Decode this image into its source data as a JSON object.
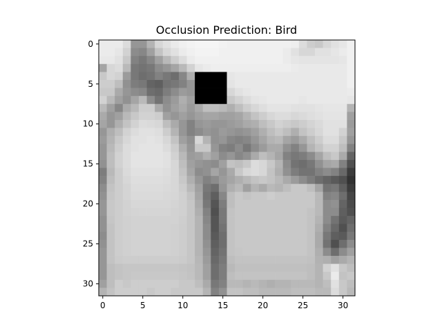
{
  "chart_data": {
    "type": "heatmap",
    "title": "Occlusion Prediction: Bird",
    "colormap": "gray",
    "rows": 32,
    "cols": 32,
    "x_ticks": [
      0,
      5,
      10,
      15,
      20,
      25,
      30
    ],
    "y_ticks": [
      0,
      5,
      10,
      15,
      20,
      25,
      30
    ],
    "occlusion_patch": {
      "row_start": 4,
      "row_end": 7,
      "col_start": 12,
      "col_end": 15,
      "value": 0
    },
    "values": [
      [
        235,
        235,
        235,
        220,
        150,
        150,
        180,
        215,
        225,
        235,
        240,
        243,
        245,
        245,
        245,
        242,
        240,
        240,
        240,
        240,
        240,
        240,
        240,
        240,
        238,
        220,
        205,
        200,
        215,
        225,
        230,
        240
      ],
      [
        235,
        235,
        230,
        210,
        140,
        135,
        160,
        195,
        215,
        225,
        235,
        240,
        243,
        243,
        243,
        240,
        240,
        240,
        240,
        240,
        240,
        240,
        240,
        235,
        225,
        215,
        215,
        225,
        225,
        230,
        235,
        240
      ],
      [
        232,
        232,
        225,
        200,
        130,
        120,
        135,
        160,
        185,
        205,
        220,
        235,
        240,
        240,
        240,
        240,
        240,
        240,
        240,
        240,
        240,
        240,
        240,
        235,
        230,
        228,
        228,
        228,
        228,
        228,
        230,
        240
      ],
      [
        165,
        215,
        220,
        185,
        120,
        115,
        120,
        140,
        150,
        165,
        185,
        210,
        230,
        235,
        238,
        238,
        238,
        238,
        238,
        238,
        238,
        238,
        238,
        238,
        235,
        233,
        233,
        233,
        233,
        233,
        233,
        240
      ],
      [
        200,
        215,
        210,
        155,
        120,
        110,
        115,
        130,
        120,
        110,
        135,
        175,
        0,
        0,
        0,
        0,
        230,
        233,
        233,
        233,
        233,
        233,
        233,
        233,
        233,
        233,
        233,
        233,
        233,
        233,
        233,
        240
      ],
      [
        205,
        205,
        190,
        145,
        125,
        120,
        100,
        95,
        115,
        120,
        130,
        150,
        0,
        0,
        0,
        0,
        228,
        233,
        233,
        233,
        233,
        233,
        233,
        233,
        233,
        233,
        233,
        233,
        233,
        233,
        233,
        240
      ],
      [
        200,
        200,
        170,
        150,
        140,
        135,
        110,
        105,
        125,
        140,
        155,
        150,
        0,
        0,
        0,
        0,
        215,
        225,
        230,
        233,
        233,
        233,
        233,
        233,
        233,
        233,
        233,
        233,
        233,
        233,
        233,
        235
      ],
      [
        210,
        185,
        160,
        145,
        165,
        185,
        140,
        115,
        140,
        155,
        175,
        160,
        0,
        0,
        0,
        0,
        200,
        210,
        220,
        228,
        230,
        233,
        233,
        233,
        233,
        230,
        233,
        233,
        233,
        233,
        233,
        230
      ],
      [
        185,
        160,
        135,
        170,
        185,
        205,
        205,
        170,
        145,
        160,
        170,
        155,
        170,
        190,
        190,
        185,
        175,
        190,
        205,
        215,
        222,
        228,
        228,
        228,
        225,
        225,
        225,
        228,
        230,
        230,
        230,
        180
      ],
      [
        170,
        150,
        160,
        185,
        200,
        210,
        210,
        205,
        160,
        150,
        160,
        150,
        160,
        165,
        165,
        160,
        160,
        165,
        180,
        195,
        205,
        215,
        220,
        220,
        215,
        218,
        222,
        225,
        228,
        228,
        228,
        160
      ],
      [
        165,
        150,
        175,
        195,
        210,
        220,
        218,
        215,
        190,
        170,
        150,
        130,
        150,
        155,
        150,
        150,
        155,
        160,
        170,
        175,
        190,
        200,
        210,
        205,
        200,
        205,
        212,
        218,
        225,
        225,
        225,
        155
      ],
      [
        150,
        175,
        190,
        210,
        220,
        225,
        225,
        222,
        205,
        180,
        150,
        130,
        140,
        150,
        145,
        155,
        150,
        145,
        150,
        160,
        175,
        190,
        200,
        190,
        175,
        195,
        205,
        215,
        225,
        225,
        210,
        160
      ],
      [
        155,
        180,
        200,
        215,
        225,
        225,
        228,
        225,
        215,
        195,
        160,
        145,
        215,
        180,
        145,
        150,
        135,
        130,
        135,
        150,
        165,
        180,
        185,
        165,
        155,
        170,
        190,
        205,
        220,
        220,
        200,
        150
      ],
      [
        150,
        185,
        205,
        220,
        225,
        228,
        228,
        228,
        220,
        205,
        175,
        150,
        200,
        200,
        150,
        130,
        125,
        140,
        120,
        140,
        155,
        170,
        170,
        145,
        130,
        150,
        180,
        195,
        210,
        210,
        190,
        130
      ],
      [
        150,
        190,
        210,
        220,
        228,
        228,
        228,
        228,
        225,
        210,
        185,
        155,
        160,
        175,
        160,
        140,
        150,
        135,
        145,
        170,
        190,
        180,
        165,
        130,
        120,
        125,
        140,
        165,
        190,
        200,
        170,
        100
      ],
      [
        145,
        190,
        210,
        220,
        228,
        228,
        228,
        228,
        225,
        215,
        190,
        160,
        150,
        145,
        140,
        160,
        195,
        190,
        200,
        220,
        215,
        200,
        180,
        140,
        115,
        110,
        120,
        145,
        165,
        170,
        130,
        80
      ],
      [
        125,
        185,
        205,
        218,
        225,
        225,
        225,
        225,
        222,
        215,
        195,
        165,
        140,
        145,
        165,
        150,
        170,
        200,
        215,
        220,
        215,
        195,
        175,
        145,
        125,
        115,
        115,
        130,
        140,
        130,
        105,
        60
      ],
      [
        130,
        190,
        205,
        215,
        222,
        222,
        222,
        222,
        220,
        215,
        200,
        175,
        150,
        130,
        140,
        155,
        165,
        175,
        185,
        195,
        200,
        195,
        185,
        170,
        155,
        140,
        125,
        110,
        100,
        90,
        80,
        50
      ],
      [
        140,
        195,
        205,
        212,
        220,
        220,
        220,
        220,
        218,
        215,
        205,
        185,
        160,
        120,
        110,
        150,
        175,
        185,
        160,
        180,
        170,
        185,
        180,
        190,
        200,
        200,
        190,
        165,
        115,
        120,
        95,
        60
      ],
      [
        145,
        198,
        205,
        212,
        218,
        218,
        218,
        218,
        216,
        214,
        208,
        195,
        165,
        115,
        95,
        135,
        190,
        200,
        195,
        200,
        200,
        205,
        200,
        200,
        200,
        200,
        200,
        185,
        130,
        135,
        110,
        70
      ],
      [
        150,
        200,
        205,
        210,
        215,
        215,
        215,
        215,
        215,
        212,
        208,
        198,
        170,
        120,
        85,
        125,
        190,
        200,
        200,
        200,
        200,
        200,
        200,
        200,
        200,
        200,
        200,
        185,
        140,
        145,
        100,
        75
      ],
      [
        150,
        200,
        205,
        210,
        212,
        213,
        213,
        213,
        213,
        210,
        208,
        198,
        175,
        130,
        80,
        120,
        195,
        200,
        200,
        200,
        200,
        200,
        200,
        200,
        200,
        200,
        195,
        185,
        140,
        140,
        95,
        80
      ],
      [
        145,
        198,
        205,
        208,
        210,
        210,
        210,
        210,
        210,
        210,
        206,
        198,
        180,
        135,
        85,
        120,
        195,
        200,
        200,
        200,
        200,
        200,
        200,
        200,
        200,
        200,
        195,
        180,
        140,
        115,
        90,
        100
      ],
      [
        145,
        195,
        205,
        208,
        210,
        210,
        210,
        210,
        210,
        208,
        205,
        198,
        180,
        140,
        85,
        115,
        195,
        200,
        200,
        200,
        200,
        200,
        200,
        200,
        200,
        200,
        195,
        175,
        130,
        105,
        80,
        110
      ],
      [
        140,
        195,
        205,
        208,
        210,
        210,
        210,
        210,
        210,
        208,
        205,
        198,
        180,
        140,
        90,
        110,
        195,
        200,
        200,
        200,
        200,
        200,
        200,
        200,
        200,
        200,
        195,
        170,
        120,
        95,
        90,
        120
      ],
      [
        145,
        195,
        205,
        208,
        210,
        210,
        210,
        210,
        210,
        208,
        205,
        198,
        180,
        145,
        95,
        110,
        195,
        200,
        200,
        200,
        200,
        200,
        200,
        200,
        200,
        200,
        195,
        170,
        115,
        80,
        110,
        140
      ],
      [
        150,
        195,
        205,
        208,
        210,
        210,
        210,
        210,
        210,
        208,
        205,
        198,
        180,
        150,
        100,
        115,
        195,
        198,
        200,
        200,
        200,
        200,
        200,
        200,
        200,
        200,
        195,
        175,
        140,
        110,
        140,
        160
      ],
      [
        150,
        195,
        203,
        205,
        205,
        205,
        205,
        205,
        205,
        205,
        203,
        198,
        183,
        155,
        105,
        120,
        190,
        195,
        195,
        195,
        195,
        195,
        195,
        195,
        195,
        195,
        193,
        178,
        175,
        160,
        170,
        180
      ],
      [
        150,
        190,
        195,
        198,
        198,
        198,
        198,
        198,
        198,
        198,
        196,
        194,
        185,
        160,
        110,
        125,
        185,
        192,
        192,
        192,
        192,
        192,
        192,
        192,
        192,
        192,
        190,
        180,
        210,
        225,
        200,
        190
      ],
      [
        150,
        190,
        195,
        198,
        200,
        200,
        200,
        200,
        200,
        200,
        198,
        195,
        185,
        160,
        110,
        125,
        190,
        195,
        195,
        195,
        195,
        195,
        195,
        195,
        195,
        195,
        190,
        180,
        200,
        235,
        195,
        200
      ],
      [
        160,
        190,
        205,
        200,
        205,
        205,
        205,
        205,
        205,
        205,
        200,
        200,
        190,
        170,
        120,
        130,
        185,
        185,
        180,
        185,
        180,
        175,
        180,
        180,
        185,
        185,
        185,
        180,
        190,
        225,
        200,
        190
      ],
      [
        180,
        195,
        205,
        205,
        205,
        205,
        200,
        205,
        205,
        200,
        200,
        200,
        200,
        180,
        130,
        145,
        195,
        195,
        190,
        190,
        185,
        185,
        185,
        185,
        190,
        190,
        190,
        185,
        185,
        220,
        200,
        185
      ]
    ]
  }
}
